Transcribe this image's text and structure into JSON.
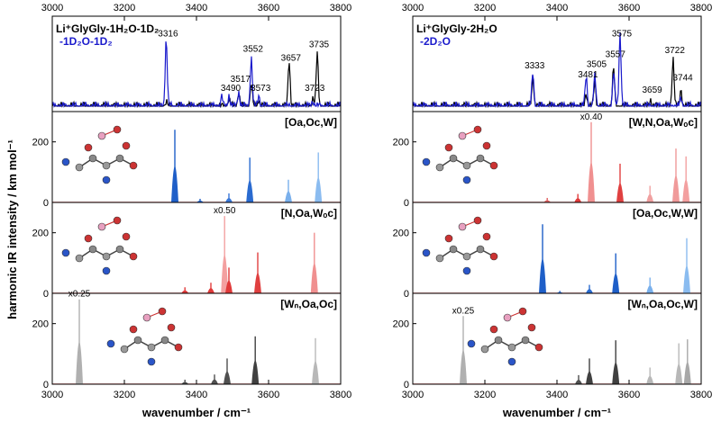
{
  "figure": {
    "y_axis_label": "harmonic IR intensity / km mol⁻¹",
    "x_axis_label": "wavenumber / cm⁻¹"
  },
  "chart_data": [
    {
      "type": "line",
      "column": "left",
      "title": "Li⁺GlyGly-1H₂O-1D₂",
      "subtitle": "-1D₂O-1D₂",
      "title_color": "#000000",
      "subtitle_color": "#1a1acc",
      "xlim": [
        3000,
        3800
      ],
      "xticks": [
        3000,
        3200,
        3400,
        3600,
        3800
      ],
      "series": [
        {
          "name": "1H2O-1D2",
          "color": "#000000",
          "peaks": [
            {
              "x": 3316,
              "h": 0.05
            },
            {
              "x": 3490,
              "h": 0.1
            },
            {
              "x": 3517,
              "h": 0.18
            },
            {
              "x": 3552,
              "h": 0.3
            },
            {
              "x": 3573,
              "h": 0.1
            },
            {
              "x": 3657,
              "h": 0.62
            },
            {
              "x": 3723,
              "h": 0.12
            },
            {
              "x": 3735,
              "h": 0.7
            }
          ]
        },
        {
          "name": "1D2O-1D2",
          "color": "#1a1acc",
          "peaks": [
            {
              "x": 3316,
              "h": 0.9
            },
            {
              "x": 3470,
              "h": 0.12
            },
            {
              "x": 3490,
              "h": 0.15
            },
            {
              "x": 3517,
              "h": 0.2
            },
            {
              "x": 3552,
              "h": 0.65
            },
            {
              "x": 3573,
              "h": 0.15
            },
            {
              "x": 3723,
              "h": 0.08
            }
          ]
        }
      ],
      "annotations": [
        {
          "text": "3316",
          "x": 3316,
          "y": 0.92
        },
        {
          "text": "3490",
          "x": 3490,
          "y": 0.2
        },
        {
          "text": "3517",
          "x": 3517,
          "y": 0.32
        },
        {
          "text": "3552",
          "x": 3552,
          "y": 0.72
        },
        {
          "text": "3573",
          "x": 3573,
          "y": 0.2
        },
        {
          "text": "3657",
          "x": 3657,
          "y": 0.6
        },
        {
          "text": "3723",
          "x": 3723,
          "y": 0.2
        },
        {
          "text": "3735",
          "x": 3735,
          "y": 0.78
        }
      ]
    },
    {
      "type": "line",
      "column": "right",
      "title": "Li⁺GlyGly-2H₂O",
      "subtitle": "-2D₂O",
      "title_color": "#000000",
      "subtitle_color": "#1a1acc",
      "xlim": [
        3000,
        3800
      ],
      "xticks": [
        3000,
        3200,
        3400,
        3600,
        3800
      ],
      "series": [
        {
          "name": "2H2O",
          "color": "#000000",
          "peaks": [
            {
              "x": 3333,
              "h": 0.4
            },
            {
              "x": 3481,
              "h": 0.18
            },
            {
              "x": 3505,
              "h": 0.32
            },
            {
              "x": 3557,
              "h": 0.5
            },
            {
              "x": 3659,
              "h": 0.1
            },
            {
              "x": 3722,
              "h": 0.65
            },
            {
              "x": 3744,
              "h": 0.22
            }
          ]
        },
        {
          "name": "2D2O",
          "color": "#1a1acc",
          "peaks": [
            {
              "x": 3333,
              "h": 0.45
            },
            {
              "x": 3481,
              "h": 0.4
            },
            {
              "x": 3505,
              "h": 0.4
            },
            {
              "x": 3557,
              "h": 0.45
            },
            {
              "x": 3575,
              "h": 0.98
            },
            {
              "x": 3744,
              "h": 0.1
            }
          ]
        }
      ],
      "annotations": [
        {
          "text": "3333",
          "x": 3333,
          "y": 0.5
        },
        {
          "text": "3481",
          "x": 3481,
          "y": 0.38
        },
        {
          "text": "3505",
          "x": 3505,
          "y": 0.52
        },
        {
          "text": "3557",
          "x": 3557,
          "y": 0.65
        },
        {
          "text": "3575",
          "x": 3575,
          "y": 0.92
        },
        {
          "text": "3659",
          "x": 3659,
          "y": 0.18
        },
        {
          "text": "3722",
          "x": 3722,
          "y": 0.7
        },
        {
          "text": "3744",
          "x": 3744,
          "y": 0.34
        }
      ]
    },
    {
      "type": "bar",
      "column": "left",
      "label": "[Oa,Oc,W]",
      "xlim": [
        3000,
        3800
      ],
      "ylim": [
        0,
        300
      ],
      "yticks": [
        0,
        200
      ],
      "scale_label": "",
      "bars": [
        {
          "x": 3340,
          "v": 240,
          "c": "#1f5fc8"
        },
        {
          "x": 3410,
          "v": 12,
          "c": "#1f5fc8"
        },
        {
          "x": 3490,
          "v": 30,
          "c": "#3a78d8"
        },
        {
          "x": 3548,
          "v": 148,
          "c": "#2a6bd0"
        },
        {
          "x": 3655,
          "v": 75,
          "c": "#7ab0ec"
        },
        {
          "x": 3738,
          "v": 165,
          "c": "#8bbcf0"
        }
      ]
    },
    {
      "type": "bar",
      "column": "right",
      "label": "[W,N,Oa,Wₒc]",
      "xlim": [
        3000,
        3800
      ],
      "ylim": [
        0,
        300
      ],
      "yticks": [
        0,
        200
      ],
      "scale_label": "x0.40",
      "bars": [
        {
          "x": 3373,
          "v": 15,
          "c": "#e06060"
        },
        {
          "x": 3458,
          "v": 28,
          "c": "#e03a3a"
        },
        {
          "x": 3495,
          "v": 265,
          "c": "#f09090"
        },
        {
          "x": 3575,
          "v": 128,
          "c": "#e04040"
        },
        {
          "x": 3658,
          "v": 55,
          "c": "#f0a0a0"
        },
        {
          "x": 3730,
          "v": 178,
          "c": "#f09a9a"
        },
        {
          "x": 3758,
          "v": 152,
          "c": "#f3a0a0"
        }
      ]
    },
    {
      "type": "bar",
      "column": "left",
      "label": "[N,Oa,Wₒc]",
      "xlim": [
        3000,
        3800
      ],
      "ylim": [
        0,
        300
      ],
      "yticks": [
        0,
        200
      ],
      "scale_label": "x0.50",
      "bars": [
        {
          "x": 3368,
          "v": 20,
          "c": "#e03a3a"
        },
        {
          "x": 3440,
          "v": 35,
          "c": "#e03a3a"
        },
        {
          "x": 3478,
          "v": 255,
          "c": "#f3a0a0"
        },
        {
          "x": 3490,
          "v": 85,
          "c": "#e03a3a"
        },
        {
          "x": 3570,
          "v": 135,
          "c": "#e04040"
        },
        {
          "x": 3727,
          "v": 200,
          "c": "#f09090"
        }
      ]
    },
    {
      "type": "bar",
      "column": "right",
      "label": "[Oa,Oc,W,W]",
      "xlim": [
        3000,
        3800
      ],
      "ylim": [
        0,
        300
      ],
      "yticks": [
        0,
        200
      ],
      "scale_label": "",
      "bars": [
        {
          "x": 3360,
          "v": 228,
          "c": "#1f5fc8"
        },
        {
          "x": 3408,
          "v": 8,
          "c": "#1f5fc8"
        },
        {
          "x": 3490,
          "v": 28,
          "c": "#2a6bd0"
        },
        {
          "x": 3563,
          "v": 132,
          "c": "#1f5fc8"
        },
        {
          "x": 3658,
          "v": 52,
          "c": "#7ab0ec"
        },
        {
          "x": 3760,
          "v": 182,
          "c": "#8bbcf0"
        }
      ]
    },
    {
      "type": "bar",
      "column": "left",
      "label": "[Wₙ,Oa,Oc]",
      "xlim": [
        3000,
        3800
      ],
      "ylim": [
        0,
        300
      ],
      "yticks": [
        0,
        200
      ],
      "scale_label": "x0.25",
      "bars": [
        {
          "x": 3075,
          "v": 280,
          "c": "#b0b0b0"
        },
        {
          "x": 3368,
          "v": 15,
          "c": "#505050"
        },
        {
          "x": 3450,
          "v": 32,
          "c": "#505050"
        },
        {
          "x": 3485,
          "v": 85,
          "c": "#505050"
        },
        {
          "x": 3563,
          "v": 158,
          "c": "#404040"
        },
        {
          "x": 3730,
          "v": 152,
          "c": "#b8b8b8"
        }
      ]
    },
    {
      "type": "bar",
      "column": "right",
      "label": "[Wₙ,Oa,Oc,W]",
      "xlim": [
        3000,
        3800
      ],
      "ylim": [
        0,
        300
      ],
      "yticks": [
        0,
        200
      ],
      "scale_label": "x0.25",
      "bars": [
        {
          "x": 3140,
          "v": 225,
          "c": "#b0b0b0"
        },
        {
          "x": 3460,
          "v": 30,
          "c": "#505050"
        },
        {
          "x": 3490,
          "v": 85,
          "c": "#404040"
        },
        {
          "x": 3563,
          "v": 145,
          "c": "#404040"
        },
        {
          "x": 3658,
          "v": 55,
          "c": "#b8b8b8"
        },
        {
          "x": 3738,
          "v": 135,
          "c": "#b8b8b8"
        },
        {
          "x": 3762,
          "v": 148,
          "c": "#a8a8a8"
        }
      ]
    }
  ]
}
